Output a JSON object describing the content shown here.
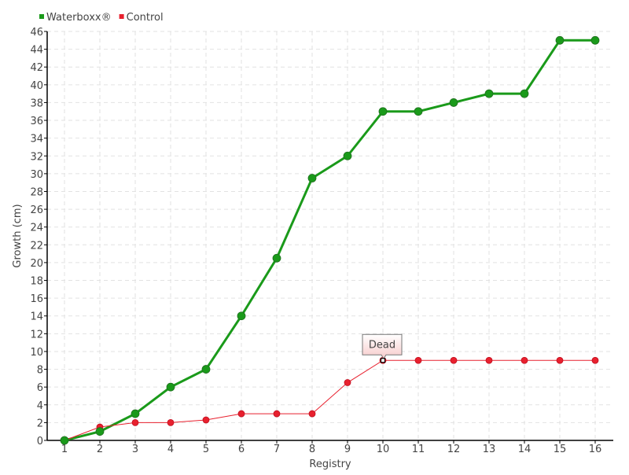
{
  "chart_data": {
    "type": "line",
    "xlabel": "Registry",
    "ylabel": "Growth (cm)",
    "x": [
      1,
      2,
      3,
      4,
      5,
      6,
      7,
      8,
      9,
      10,
      11,
      12,
      13,
      14,
      15,
      16
    ],
    "xlim": [
      0.5,
      16.5
    ],
    "ylim": [
      0,
      46
    ],
    "ytick_step": 2,
    "grid": true,
    "legend_placement": "top-left",
    "series": [
      {
        "name": "Waterboxx®",
        "color": "#1a9a1a",
        "values": [
          0,
          1,
          3,
          6,
          8,
          14,
          20.5,
          29.5,
          32,
          37,
          37,
          38,
          39,
          39,
          45,
          45
        ]
      },
      {
        "name": "Control",
        "color": "#e8202e",
        "values": [
          0,
          1.5,
          2,
          2,
          2.3,
          3,
          3,
          3,
          6.5,
          9,
          9,
          9,
          9,
          9,
          9,
          9
        ]
      }
    ],
    "annotations": [
      {
        "series": "Control",
        "x": 10,
        "text": "Dead"
      }
    ]
  }
}
